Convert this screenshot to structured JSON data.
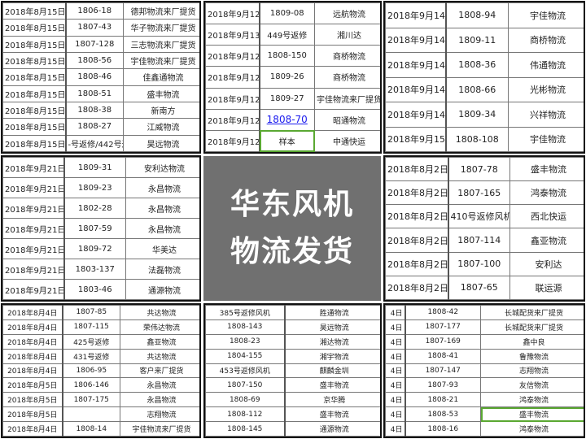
{
  "title_lines": [
    "华东风机",
    "物流发货"
  ],
  "accent_colors": {
    "title_bg": "#707070",
    "link": "#1a1aee",
    "selected_cell_border": "#5aa832"
  },
  "panels": [
    {
      "rows": [
        [
          "2018年8月15日",
          "1806-18",
          "德邦物流来厂提货"
        ],
        [
          "2018年8月15日",
          "1807-43",
          "华子物流来厂提货"
        ],
        [
          "2018年8月15日",
          "1807-128",
          "三志物流来厂提货"
        ],
        [
          "2018年8月15日",
          "1808-56",
          "宇佳物流来厂提货"
        ],
        [
          "2018年8月15日",
          "1808-46",
          "佳鑫通物流"
        ],
        [
          "2018年8月15日",
          "1808-51",
          "盛丰物流"
        ],
        [
          "2018年8月15日",
          "1808-38",
          "新南方"
        ],
        [
          "2018年8月15日",
          "1808-27",
          "江威物流"
        ],
        [
          "2018年8月15日",
          "-号返修/442号返",
          "昊远物流"
        ]
      ]
    },
    {
      "rows": [
        [
          "2018年9月12日",
          "1809-08",
          "远航物流"
        ],
        [
          "2018年9月13日",
          "449号返修",
          "湘川达"
        ],
        [
          "2018年9月12日",
          "1808-150",
          "商桥物流"
        ],
        [
          "2018年9月12日",
          "1809-26",
          "商桥物流"
        ],
        [
          "2018年9月12日",
          "1809-27",
          "宇佳物流来厂提货"
        ],
        [
          "2018年9月12日",
          "1808-70",
          "昭通物流"
        ],
        [
          "2018年9月12日",
          "样本",
          "中通快运"
        ]
      ]
    },
    {
      "rows": [
        [
          "2018年9月14日",
          "1808-94",
          "宇佳物流"
        ],
        [
          "2018年9月14日",
          "1809-11",
          "商桥物流"
        ],
        [
          "2018年9月14日",
          "1808-36",
          "伟通物流"
        ],
        [
          "2018年9月14日",
          "1808-66",
          "光彬物流"
        ],
        [
          "2018年9月14日",
          "1809-34",
          "兴祥物流"
        ],
        [
          "2018年9月15日",
          "1808-108",
          "宇佳物流"
        ]
      ]
    },
    {
      "rows": [
        [
          "2018年9月21日",
          "1809-31",
          "安利达物流"
        ],
        [
          "2018年9月21日",
          "1809-23",
          "永昌物流"
        ],
        [
          "2018年9月21日",
          "1802-28",
          "永昌物流"
        ],
        [
          "2018年9月21日",
          "1807-59",
          "永昌物流"
        ],
        [
          "2018年9月21日",
          "1809-72",
          "华美达"
        ],
        [
          "2018年9月21日",
          "1803-137",
          "法磊物流"
        ],
        [
          "2018年9月21日",
          "1803-46",
          "通源物流"
        ]
      ]
    },
    {
      "rows": [
        [
          "2018年8月2日",
          "1807-78",
          "盛丰物流"
        ],
        [
          "2018年8月2日",
          "1807-165",
          "鸿泰物流"
        ],
        [
          "2018年8月2日",
          "410号返修风机",
          "西北快运"
        ],
        [
          "2018年8月2日",
          "1807-114",
          "鑫亚物流"
        ],
        [
          "2018年8月2日",
          "1807-100",
          "安利达"
        ],
        [
          "2018年8月2日",
          "1807-65",
          "联运源"
        ]
      ]
    },
    {
      "rows": [
        [
          "2018年8月4日",
          "1807-85",
          "共达物流"
        ],
        [
          "2018年8月4日",
          "1807-115",
          "荣伟达物流"
        ],
        [
          "2018年8月4日",
          "425号返修",
          "鑫亚物流"
        ],
        [
          "2018年8月4日",
          "431号返修",
          "共达物流"
        ],
        [
          "2018年8月4日",
          "1806-95",
          "客户来厂提货"
        ],
        [
          "2018年8月5日",
          "1806-146",
          "永昌物流"
        ],
        [
          "2018年8月5日",
          "1807-175",
          "永昌物流"
        ],
        [
          "2018年8月5日",
          "",
          "志翔物流"
        ],
        [
          "2018年8月4日",
          "1808-14",
          "宇佳物流来厂提货"
        ]
      ]
    },
    {
      "rows": [
        [
          "385号返修风机",
          "胜通物流"
        ],
        [
          "1808-143",
          "昊远物流"
        ],
        [
          "1808-23",
          "湘达物流"
        ],
        [
          "1804-155",
          "湘宇物流"
        ],
        [
          "453号返修风机",
          "麒麟金圳"
        ],
        [
          "1807-150",
          "盛丰物流"
        ],
        [
          "1808-69",
          "京华腾"
        ],
        [
          "1808-112",
          "盛丰物流"
        ],
        [
          "1808-145",
          "通源物流"
        ]
      ]
    },
    {
      "rows": [
        [
          "4日",
          "1808-42",
          "长城配货来厂提货"
        ],
        [
          "4日",
          "1807-177",
          "长城配货来厂提货"
        ],
        [
          "4日",
          "1807-169",
          "鑫中良"
        ],
        [
          "4日",
          "1808-41",
          "鲁豫物流"
        ],
        [
          "4日",
          "1807-147",
          "志翔物流"
        ],
        [
          "4日",
          "1807-93",
          "友信物流"
        ],
        [
          "4日",
          "1808-21",
          "鸿泰物流"
        ],
        [
          "4日",
          "1808-53",
          "盛丰物流"
        ],
        [
          "4日",
          "1808-16",
          "鸿泰物流"
        ]
      ]
    }
  ]
}
